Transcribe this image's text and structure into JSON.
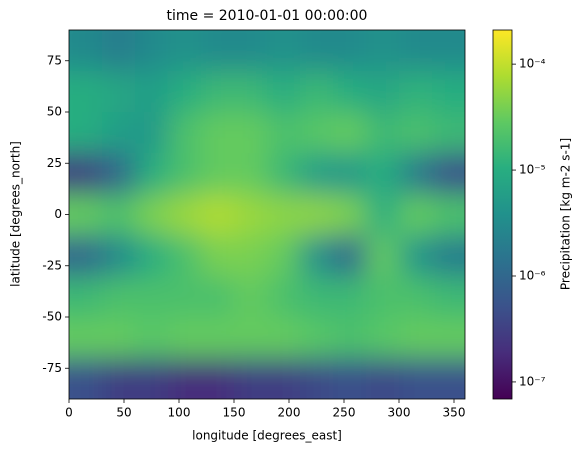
{
  "chart_data": {
    "type": "heatmap",
    "title": "time = 2010-01-01 00:00:00",
    "x_label": "longitude [degrees_east]",
    "y_label": "latitude [degrees_north]",
    "colorbar_label": "Precipitation [kg m-2 s-1]",
    "colormap": "viridis",
    "colorbar_scale": "log",
    "x": [
      15,
      45,
      75,
      105,
      135,
      165,
      195,
      225,
      255,
      285,
      315,
      345
    ],
    "y": [
      80,
      60,
      40,
      20,
      0,
      -20,
      -40,
      -60,
      -80
    ],
    "z": [
      [
        3e-06,
        2e-06,
        3e-06,
        4e-06,
        3e-06,
        3e-06,
        4e-06,
        3e-06,
        3e-06,
        4e-06,
        3e-06,
        3e-06
      ],
      [
        1e-05,
        8e-06,
        6e-06,
        1e-05,
        1.5e-05,
        1.5e-05,
        1e-05,
        1.5e-05,
        1e-05,
        8e-06,
        1.2e-05,
        1e-05
      ],
      [
        1e-05,
        6e-06,
        5e-06,
        2e-05,
        3e-05,
        3e-05,
        2e-05,
        2.5e-05,
        3e-05,
        1.5e-05,
        2e-05,
        1.5e-05
      ],
      [
        3e-07,
        1e-06,
        1e-05,
        2e-05,
        3e-05,
        3e-05,
        1.5e-05,
        6e-06,
        5e-06,
        1e-05,
        2e-06,
        5e-07
      ],
      [
        3e-05,
        2e-05,
        4e-05,
        6e-05,
        8e-05,
        6e-05,
        5e-05,
        5e-05,
        4e-05,
        1e-05,
        3e-05,
        2e-05
      ],
      [
        1e-06,
        3e-06,
        1e-05,
        2e-05,
        4e-05,
        4e-05,
        3e-05,
        4e-06,
        1e-06,
        3e-05,
        5e-06,
        2e-06
      ],
      [
        1.5e-05,
        2e-05,
        2e-05,
        2e-05,
        2e-05,
        3e-05,
        2e-05,
        1.5e-05,
        1.5e-05,
        2e-05,
        2e-05,
        1.5e-05
      ],
      [
        3e-05,
        3e-05,
        2.5e-05,
        3e-05,
        3e-05,
        3e-05,
        3e-05,
        2.5e-05,
        2e-05,
        2.5e-05,
        3e-05,
        3e-05
      ],
      [
        5e-07,
        3e-07,
        3e-07,
        2e-07,
        2e-07,
        3e-07,
        3e-07,
        4e-07,
        5e-07,
        4e-07,
        5e-07,
        5e-07
      ]
    ],
    "xlim": [
      0,
      360
    ],
    "xticks": [
      0,
      50,
      100,
      150,
      200,
      250,
      300,
      350
    ],
    "ylim": [
      -90,
      90
    ],
    "yticks": [
      -75,
      -50,
      -25,
      0,
      25,
      50,
      75
    ],
    "clim": [
      6.9e-08,
      0.00021
    ],
    "cticks": [
      {
        "value": 1e-07,
        "label": "10⁻⁷"
      },
      {
        "value": 1e-06,
        "label": "10⁻⁶"
      },
      {
        "value": 1e-05,
        "label": "10⁻⁵"
      },
      {
        "value": 0.0001,
        "label": "10⁻⁴"
      }
    ]
  }
}
